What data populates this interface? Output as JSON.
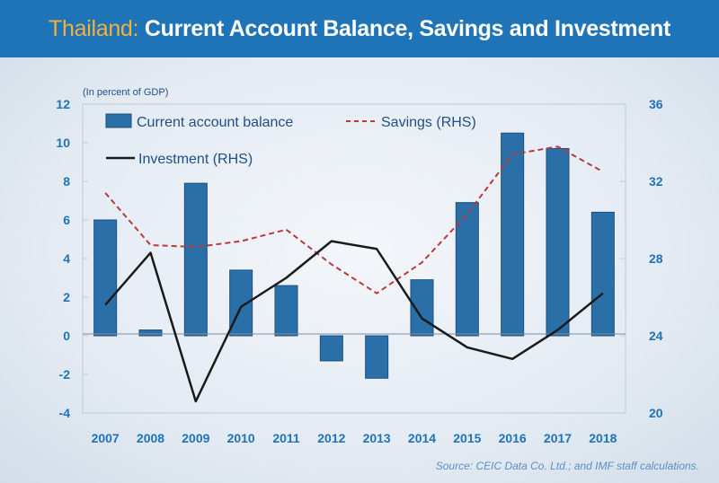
{
  "header": {
    "country": "Thailand:",
    "title": "Current Account Balance, Savings and Investment"
  },
  "source": "Source: CEIC Data Co. Ltd.; and IMF staff calculations.",
  "chart_data": {
    "type": "bar",
    "subtitle": "(In percent of GDP)",
    "categories": [
      "2007",
      "2008",
      "2009",
      "2010",
      "2011",
      "2012",
      "2013",
      "2014",
      "2015",
      "2016",
      "2017",
      "2018"
    ],
    "series": [
      {
        "name": "Current account balance",
        "axis": "left",
        "kind": "bar",
        "values": [
          6.0,
          0.3,
          7.9,
          3.4,
          2.6,
          -1.3,
          -2.2,
          2.9,
          6.9,
          10.5,
          9.7,
          6.4
        ],
        "color": "#2a6fa8"
      },
      {
        "name": "Savings (RHS)",
        "axis": "right",
        "kind": "line",
        "dash": true,
        "values": [
          31.4,
          28.7,
          28.6,
          28.9,
          29.5,
          27.7,
          26.2,
          27.8,
          30.3,
          33.4,
          33.8,
          32.5
        ],
        "color": "#b83a3a"
      },
      {
        "name": "Investment (RHS)",
        "axis": "right",
        "kind": "line",
        "dash": false,
        "values": [
          25.6,
          28.3,
          20.6,
          25.5,
          27.0,
          28.9,
          28.5,
          24.9,
          23.4,
          22.8,
          24.3,
          26.2
        ],
        "color": "#1a1a1a"
      }
    ],
    "ylim_left": [
      -4,
      12
    ],
    "yticks_left": [
      "12",
      "10",
      "8",
      "6",
      "4",
      "2",
      "0",
      "-2",
      "-4"
    ],
    "ylim_right": [
      20,
      36
    ],
    "yticks_right": [
      "36",
      "32",
      "28",
      "24",
      "20"
    ],
    "legend_placement": "top",
    "grid": false,
    "axis_color": "#1f73b7"
  }
}
